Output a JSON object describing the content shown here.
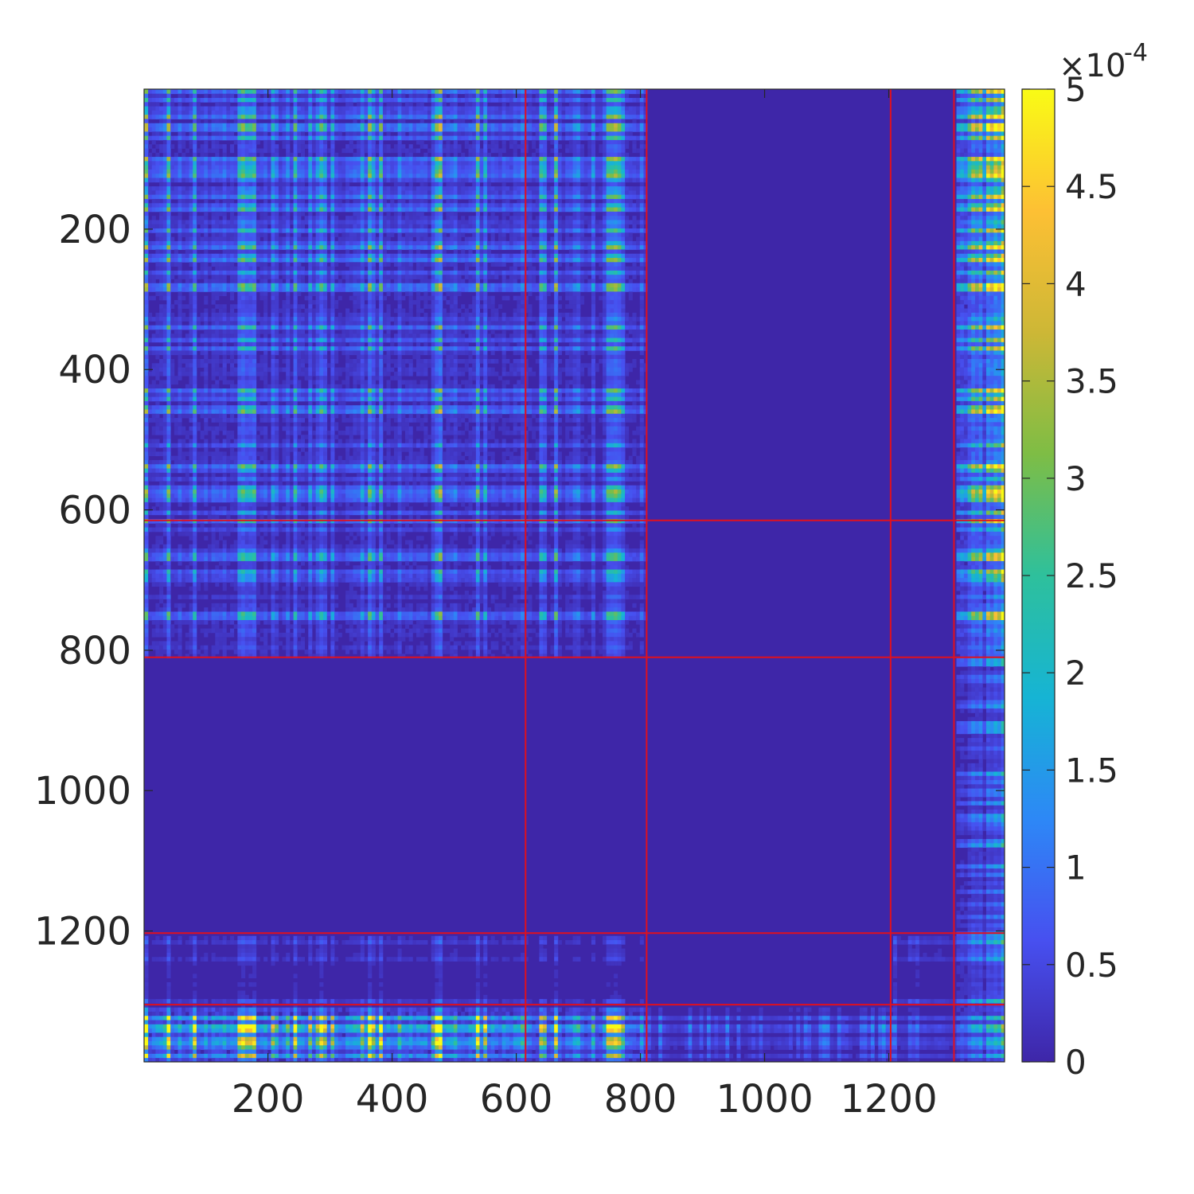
{
  "chart_data": {
    "type": "heatmap",
    "title": "",
    "xlabel": "",
    "ylabel": "",
    "matrix_size": 1386,
    "x_range": [
      1,
      1386
    ],
    "y_range": [
      1,
      1386
    ],
    "y_axis_direction": "reversed",
    "x_ticks": [
      200,
      400,
      600,
      800,
      1000,
      1200
    ],
    "y_ticks": [
      200,
      400,
      600,
      800,
      1000,
      1200
    ],
    "x_tick_labels": [
      "200",
      "400",
      "600",
      "800",
      "1000",
      "1200"
    ],
    "y_tick_labels": [
      "200",
      "400",
      "600",
      "800",
      "1000",
      "1200"
    ],
    "block_boundaries": [
      615,
      810,
      1203,
      1305
    ],
    "boundary_color": "#e0101e",
    "background_color": "#3e26a8",
    "block_activity": [
      [
        0.45,
        0.4,
        0.0,
        0.0,
        0.95
      ],
      [
        0.4,
        0.35,
        0.0,
        0.0,
        0.85
      ],
      [
        0.0,
        0.0,
        0.0,
        0.0,
        0.35
      ],
      [
        0.12,
        0.08,
        0.0,
        0.15,
        0.4
      ],
      [
        0.9,
        0.65,
        0.2,
        0.25,
        0.5
      ]
    ],
    "colorbar": {
      "min": 0,
      "max": 0.0005,
      "exponent_label": "×10",
      "exponent_power": "-4",
      "ticks": [
        0,
        0.5,
        1,
        1.5,
        2,
        2.5,
        3,
        3.5,
        4,
        4.5,
        5
      ],
      "tick_labels": [
        "0",
        "0.5",
        "1",
        "1.5",
        "2",
        "2.5",
        "3",
        "3.5",
        "4",
        "4.5",
        "5"
      ],
      "colormap": "parula",
      "colormap_stops": [
        "#3e26a8",
        "#4750f0",
        "#2d88f6",
        "#16b4d4",
        "#2ec09c",
        "#7ebd45",
        "#cdb736",
        "#fdc034",
        "#f9fb15"
      ]
    }
  }
}
